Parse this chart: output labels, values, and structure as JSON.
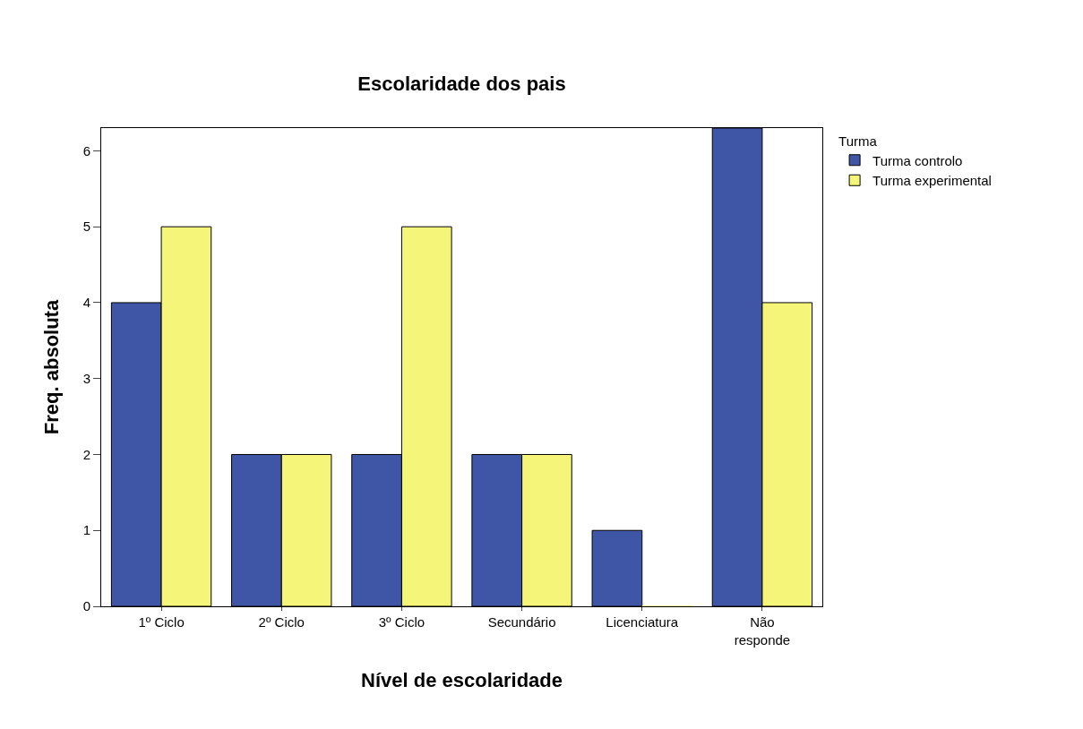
{
  "chart_data": {
    "type": "bar",
    "title": "Escolaridade dos pais",
    "xlabel": "Nível de escolaridade",
    "ylabel": "Freq. absoluta",
    "legend_title": "Turma",
    "categories": [
      "1º Ciclo",
      "2º Ciclo",
      "3º Ciclo",
      "Secundário",
      "Licenciatura",
      "Não responde"
    ],
    "series": [
      {
        "name": "Turma controlo",
        "color": "#3f56a6",
        "values": [
          4,
          2,
          2,
          2,
          1,
          6.3
        ]
      },
      {
        "name": "Turma experimental",
        "color": "#f5f57a",
        "values": [
          5,
          2,
          5,
          2,
          0,
          4
        ]
      }
    ],
    "ylim": [
      0,
      6.3
    ],
    "yticks": [
      0,
      1,
      2,
      3,
      4,
      5,
      6
    ],
    "grid": false,
    "legend": "top right"
  }
}
